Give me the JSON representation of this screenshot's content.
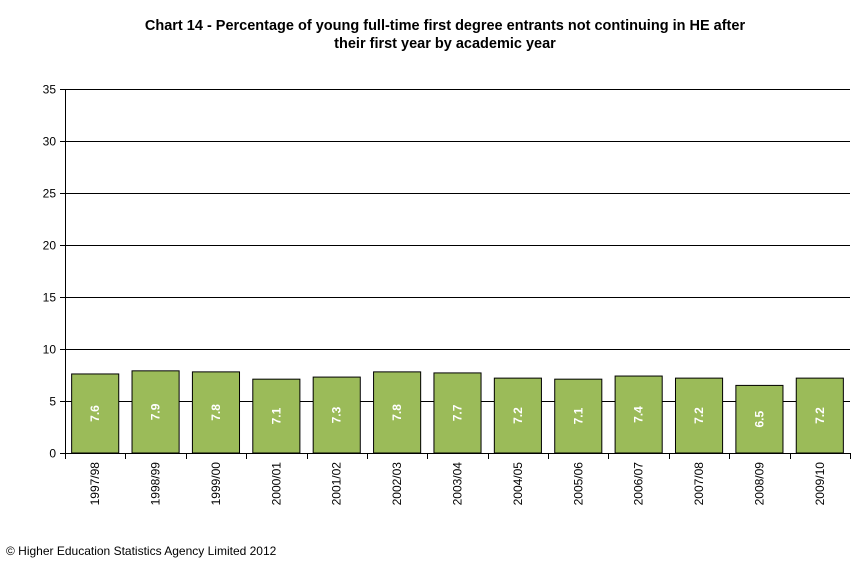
{
  "title_line1": "Chart 14 - Percentage of young full-time  first degree entrants not continuing in HE after",
  "title_line2": "their first year by academic year",
  "copyright": "© Higher  Education Statistics Agency Limited 2012",
  "colors": {
    "bar_fill": "#9bbb59",
    "bar_stroke": "#000000",
    "gridline": "#000000",
    "data_label": "#ffffff"
  },
  "chart_data": {
    "type": "bar",
    "title": "Chart 14 - Percentage of young full-time  first degree entrants not continuing in HE after their first year by academic year",
    "xlabel": "",
    "ylabel": "",
    "ylim": [
      0,
      35
    ],
    "yticks": [
      0,
      5,
      10,
      15,
      20,
      25,
      30,
      35
    ],
    "grid": true,
    "legend": "none",
    "categories": [
      "1997/98",
      "1998/99",
      "1999/00",
      "2000/01",
      "2001/02",
      "2002/03",
      "2003/04",
      "2004/05",
      "2005/06",
      "2006/07",
      "2007/08",
      "2008/09",
      "2009/10"
    ],
    "values": [
      7.6,
      7.9,
      7.8,
      7.1,
      7.3,
      7.8,
      7.7,
      7.2,
      7.1,
      7.4,
      7.2,
      6.5,
      7.2
    ]
  }
}
